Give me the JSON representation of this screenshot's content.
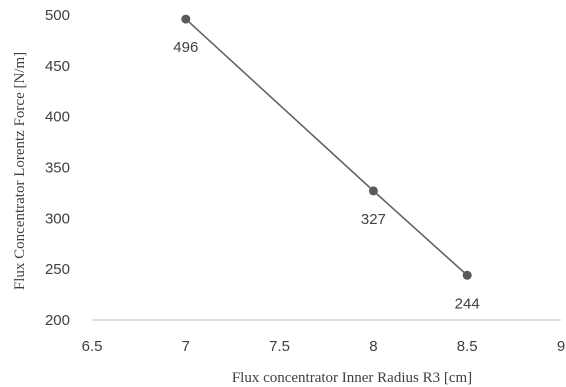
{
  "chart_data": {
    "type": "line",
    "title": "",
    "xlabel": "Flux concentrator Inner Radius R3 [cm]",
    "ylabel": "Flux Concentrator Lorentz Force [N/m]",
    "xlim": [
      6.5,
      9
    ],
    "ylim": [
      200,
      500
    ],
    "x_ticks": [
      "6.5",
      "7",
      "7.5",
      "8",
      "8.5",
      "9"
    ],
    "y_ticks": [
      "200",
      "250",
      "300",
      "350",
      "400",
      "450",
      "500"
    ],
    "grid": false,
    "legend": "none",
    "series": [
      {
        "x": [
          7,
          8,
          8.5
        ],
        "values": [
          496,
          327,
          244
        ],
        "labels": [
          "496",
          "327",
          "244"
        ]
      }
    ],
    "colors": {
      "line": "#636363",
      "marker": "#5a5a5a",
      "axis": "#bfbfbf",
      "text": "#404040"
    }
  }
}
